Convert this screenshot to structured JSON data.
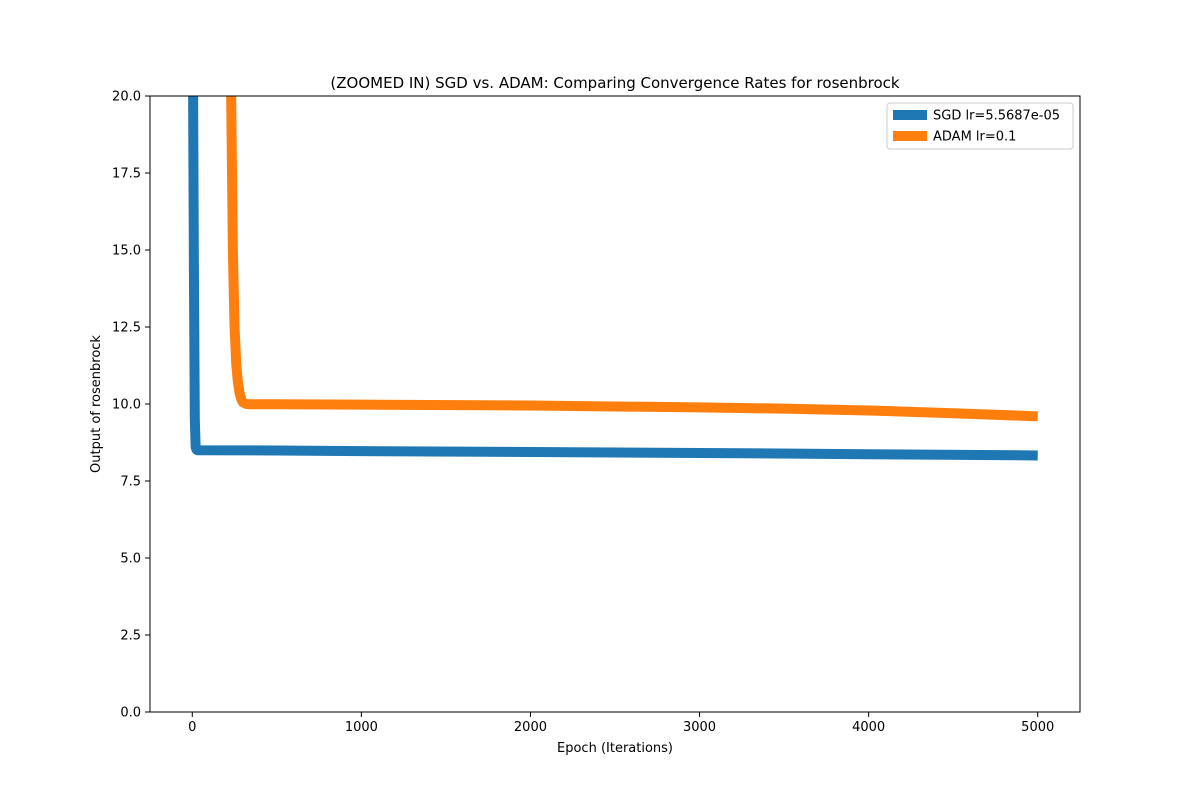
{
  "chart_data": {
    "type": "line",
    "title": "(ZOOMED IN) SGD vs. ADAM: Comparing Convergence Rates for rosenbrock",
    "xlabel": "Epoch (Iterations)",
    "ylabel": "Output of rosenbrock",
    "xlim": [
      -250,
      5250
    ],
    "ylim": [
      0,
      20
    ],
    "xticks": [
      0,
      1000,
      2000,
      3000,
      4000,
      5000
    ],
    "xtick_labels": [
      "0",
      "1000",
      "2000",
      "3000",
      "4000",
      "5000"
    ],
    "yticks": [
      0,
      2.5,
      5,
      7.5,
      10,
      12.5,
      15,
      17.5,
      20
    ],
    "ytick_labels": [
      "0.0",
      "2.5",
      "5.0",
      "7.5",
      "10.0",
      "12.5",
      "15.0",
      "17.5",
      "20.0"
    ],
    "grid": false,
    "legend_position": "upper right",
    "series": [
      {
        "name": "SGD lr=5.5687e-05",
        "color": "#1f77b4",
        "x": [
          0,
          5,
          10,
          15,
          20,
          25,
          30,
          500,
          1000,
          2000,
          3000,
          4000,
          5000
        ],
        "y": [
          25,
          20,
          14,
          9.5,
          8.6,
          8.52,
          8.5,
          8.49,
          8.47,
          8.44,
          8.41,
          8.37,
          8.33
        ]
      },
      {
        "name": "ADAM lr=0.1",
        "color": "#ff7f0e",
        "x": [
          220,
          230,
          240,
          250,
          260,
          270,
          280,
          290,
          300,
          320,
          340,
          400,
          500,
          1000,
          2000,
          3000,
          3500,
          4000,
          4500,
          5000
        ],
        "y": [
          25,
          20,
          15,
          12.5,
          11.3,
          10.7,
          10.35,
          10.15,
          10.05,
          10.0,
          9.99,
          9.99,
          9.99,
          9.98,
          9.95,
          9.89,
          9.85,
          9.79,
          9.7,
          9.6
        ]
      }
    ]
  }
}
